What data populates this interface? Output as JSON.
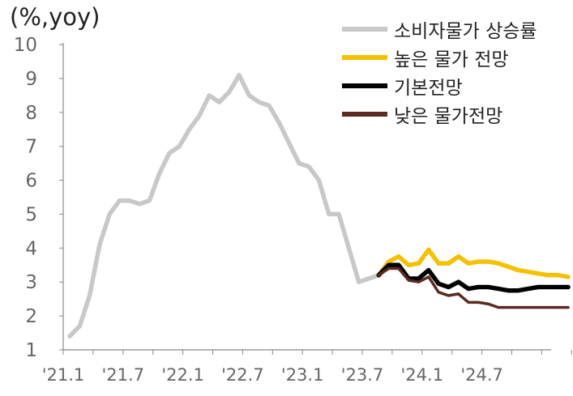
{
  "chart_data": {
    "type": "line",
    "unit_label": "(%,yoy)",
    "ylim": [
      1,
      10
    ],
    "y_ticks": [
      "1",
      "2",
      "3",
      "4",
      "5",
      "6",
      "7",
      "8",
      "9",
      "10"
    ],
    "x_ticks": [
      "'21.1",
      "'21.7",
      "'22.1",
      "'22.7",
      "'23.1",
      "'23.7",
      "'24.1",
      "'24.7"
    ],
    "x_start": "2021-01",
    "x_end": "2025-03",
    "grid": false,
    "legend_position": "top-right",
    "series": [
      {
        "name": "소비자물가 상승률",
        "color": "#c8c8c8",
        "x": [
          "2021-01",
          "2021-02",
          "2021-03",
          "2021-04",
          "2021-05",
          "2021-06",
          "2021-07",
          "2021-08",
          "2021-09",
          "2021-10",
          "2021-11",
          "2021-12",
          "2022-01",
          "2022-02",
          "2022-03",
          "2022-04",
          "2022-05",
          "2022-06",
          "2022-07",
          "2022-08",
          "2022-09",
          "2022-10",
          "2022-11",
          "2022-12",
          "2023-01",
          "2023-02",
          "2023-03",
          "2023-04",
          "2023-05",
          "2023-06",
          "2023-07",
          "2023-08"
        ],
        "values": [
          1.4,
          1.7,
          2.6,
          4.1,
          5.0,
          5.4,
          5.4,
          5.3,
          5.4,
          6.2,
          6.8,
          7.0,
          7.5,
          7.9,
          8.5,
          8.3,
          8.6,
          9.1,
          8.5,
          8.3,
          8.2,
          7.7,
          7.1,
          6.5,
          6.4,
          6.0,
          5.0,
          5.0,
          4.0,
          3.0,
          3.1,
          3.2
        ]
      },
      {
        "name": "높은 물가 전망",
        "color": "#f5c000",
        "x": [
          "2023-08",
          "2023-09",
          "2023-10",
          "2023-11",
          "2023-12",
          "2024-01",
          "2024-02",
          "2024-03",
          "2024-04",
          "2024-05",
          "2024-06",
          "2024-07",
          "2024-08",
          "2024-09",
          "2024-10",
          "2024-11",
          "2024-12",
          "2025-01",
          "2025-02",
          "2025-03"
        ],
        "values": [
          3.2,
          3.6,
          3.75,
          3.5,
          3.55,
          3.95,
          3.55,
          3.55,
          3.75,
          3.55,
          3.6,
          3.6,
          3.55,
          3.45,
          3.35,
          3.3,
          3.25,
          3.2,
          3.2,
          3.15
        ]
      },
      {
        "name": "기본전망",
        "color": "#000000",
        "x": [
          "2023-08",
          "2023-09",
          "2023-10",
          "2023-11",
          "2023-12",
          "2024-01",
          "2024-02",
          "2024-03",
          "2024-04",
          "2024-05",
          "2024-06",
          "2024-07",
          "2024-08",
          "2024-09",
          "2024-10",
          "2024-11",
          "2024-12",
          "2025-01",
          "2025-02",
          "2025-03"
        ],
        "values": [
          3.2,
          3.5,
          3.5,
          3.1,
          3.1,
          3.35,
          2.95,
          2.85,
          3.0,
          2.8,
          2.85,
          2.85,
          2.8,
          2.75,
          2.75,
          2.8,
          2.85,
          2.85,
          2.85,
          2.85
        ]
      },
      {
        "name": "낮은 물가전망",
        "color": "#5c2a20",
        "x": [
          "2023-08",
          "2023-09",
          "2023-10",
          "2023-11",
          "2023-12",
          "2024-01",
          "2024-02",
          "2024-03",
          "2024-04",
          "2024-05",
          "2024-06",
          "2024-07",
          "2024-08",
          "2024-09",
          "2024-10",
          "2024-11",
          "2024-12",
          "2025-01",
          "2025-02",
          "2025-03"
        ],
        "values": [
          3.2,
          3.4,
          3.4,
          3.05,
          3.0,
          3.15,
          2.7,
          2.6,
          2.65,
          2.4,
          2.4,
          2.35,
          2.25,
          2.25,
          2.25,
          2.25,
          2.25,
          2.25,
          2.25,
          2.25
        ]
      }
    ]
  }
}
